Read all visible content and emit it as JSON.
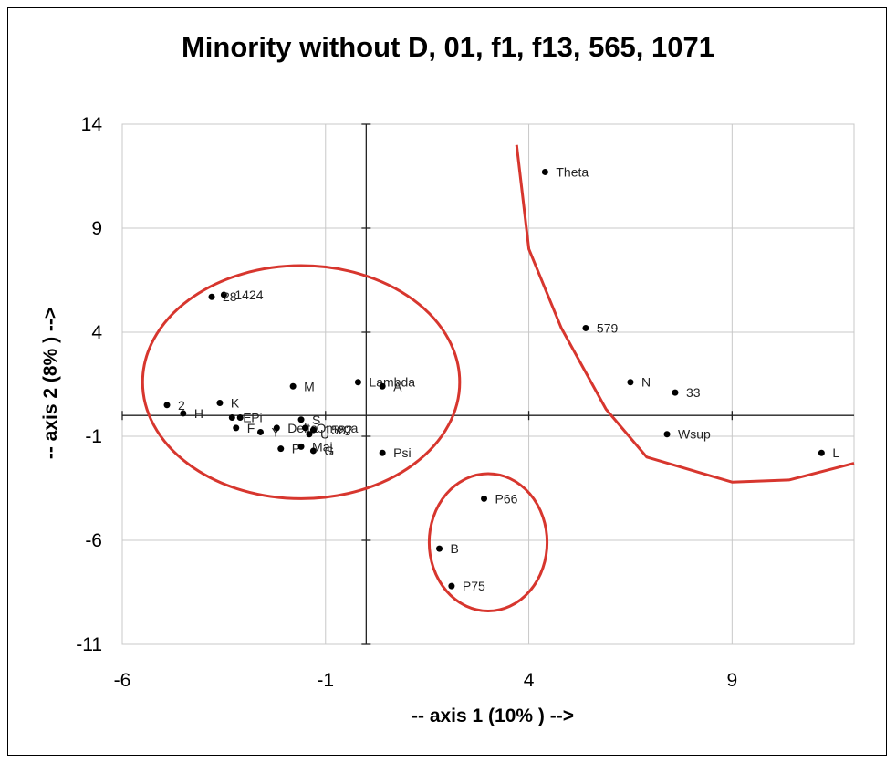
{
  "chart_data": {
    "type": "scatter",
    "title": "Minority without D, 01, f1, f13, 565, 1071",
    "xlabel": "-- axis 1 (10%  ) -->",
    "ylabel": "-- axis 2 (8%  ) -->",
    "xlim": [
      -6,
      12
    ],
    "ylim": [
      -11,
      14
    ],
    "x_ticks": [
      -6,
      -1,
      4,
      9
    ],
    "y_ticks": [
      14,
      9,
      4,
      -1,
      -6,
      -11
    ],
    "x_tick_labels": [
      "-6",
      "-1",
      "4",
      "9"
    ],
    "y_tick_labels": [
      "14",
      "9",
      "4",
      "-1",
      "-6",
      "-11"
    ],
    "grid": true,
    "points": [
      {
        "label": "Theta",
        "x": 4.4,
        "y": 11.7
      },
      {
        "label": "579",
        "x": 5.4,
        "y": 4.2
      },
      {
        "label": "N",
        "x": 6.5,
        "y": 1.6
      },
      {
        "label": "33",
        "x": 7.6,
        "y": 1.1
      },
      {
        "label": "Wsup",
        "x": 7.4,
        "y": -0.9
      },
      {
        "label": "L",
        "x": 11.2,
        "y": -1.8
      },
      {
        "label": "P66",
        "x": 2.9,
        "y": -4.0
      },
      {
        "label": "B",
        "x": 1.8,
        "y": -6.4
      },
      {
        "label": "P75",
        "x": 2.1,
        "y": -8.2
      },
      {
        "label": "Lambda",
        "x": -0.2,
        "y": 1.6
      },
      {
        "label": "A",
        "x": 0.4,
        "y": 1.4
      },
      {
        "label": "Psi",
        "x": 0.4,
        "y": -1.8
      },
      {
        "label": "M",
        "x": -1.8,
        "y": 1.4
      },
      {
        "label": "1424",
        "x": -3.5,
        "y": 5.8
      },
      {
        "label": "28",
        "x": -3.8,
        "y": 5.7
      },
      {
        "label": "2",
        "x": -4.9,
        "y": 0.5
      },
      {
        "label": "H",
        "x": -4.5,
        "y": 0.1
      },
      {
        "label": "K",
        "x": -3.6,
        "y": 0.6
      },
      {
        "label": "E",
        "x": -3.3,
        "y": -0.1
      },
      {
        "label": "Pi",
        "x": -3.1,
        "y": -0.1
      },
      {
        "label": "F",
        "x": -3.2,
        "y": -0.6
      },
      {
        "label": "Y",
        "x": -2.6,
        "y": -0.8
      },
      {
        "label": "Delta",
        "x": -2.2,
        "y": -0.6
      },
      {
        "label": "Omega",
        "x": -1.5,
        "y": -0.6
      },
      {
        "label": "S",
        "x": -1.6,
        "y": -0.2
      },
      {
        "label": "U",
        "x": -1.4,
        "y": -0.9
      },
      {
        "label": "1582",
        "x": -1.3,
        "y": -0.7
      },
      {
        "label": "P",
        "x": -2.1,
        "y": -1.6
      },
      {
        "label": "Maj",
        "x": -1.6,
        "y": -1.5
      },
      {
        "label": "G",
        "x": -1.3,
        "y": -1.7
      }
    ],
    "red_curve": [
      {
        "x": 3.7,
        "y": 13.0
      },
      {
        "x": 4.0,
        "y": 8.0
      },
      {
        "x": 4.8,
        "y": 4.2
      },
      {
        "x": 5.9,
        "y": 0.3
      },
      {
        "x": 6.9,
        "y": -2.0
      },
      {
        "x": 9.0,
        "y": -3.2
      },
      {
        "x": 10.4,
        "y": -3.1
      },
      {
        "x": 12.0,
        "y": -2.3
      }
    ],
    "ellipses": [
      {
        "center_x": -1.6,
        "center_y": 1.6,
        "radius_x": 3.9,
        "radius_y": 5.6,
        "encloses": "left cluster"
      },
      {
        "center_x": 3.0,
        "center_y": -6.1,
        "radius_x": 1.45,
        "radius_y": 3.3,
        "encloses": "P66, B, P75"
      }
    ],
    "colors": {
      "points": "#000000",
      "curves": "#d7362e",
      "grid": "#c8c8c8",
      "axes": "#222222"
    }
  }
}
